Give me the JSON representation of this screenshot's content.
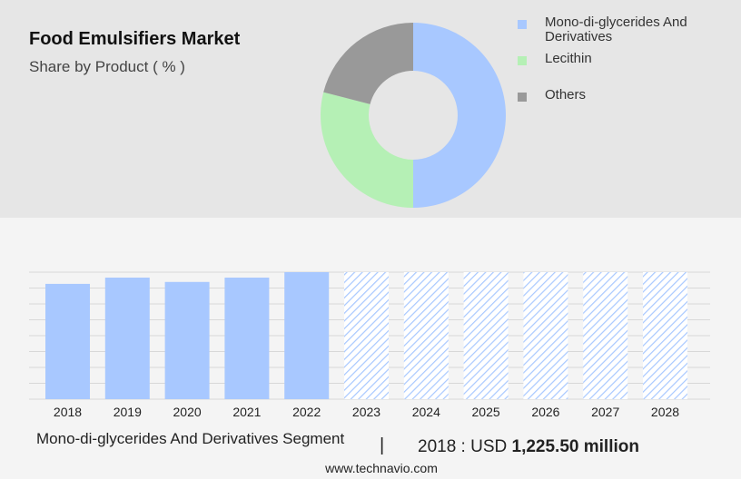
{
  "chart_data": [
    {
      "type": "pie",
      "title": "Food Emulsifiers Market",
      "subtitle": "Share by Product ( % )",
      "labels": [
        "Mono-di-glycerides And Derivatives",
        "Lecithin",
        "Others"
      ],
      "values": [
        50,
        29,
        21
      ],
      "colors": [
        "#a8c8ff",
        "#b5f0b5",
        "#999999"
      ],
      "legend_position": "right"
    },
    {
      "type": "bar",
      "categories": [
        "2018",
        "2019",
        "2020",
        "2021",
        "2022",
        "2023",
        "2024",
        "2025",
        "2026",
        "2027",
        "2028"
      ],
      "series": [
        {
          "values": [
            1225.5,
            1292,
            1246,
            1292,
            1350,
            1350,
            1350,
            1350,
            1350,
            1350,
            1350
          ],
          "forecast": [
            false,
            false,
            false,
            false,
            false,
            true,
            true,
            true,
            true,
            true,
            true
          ]
        }
      ],
      "ylim": [
        0,
        1350
      ],
      "grid": true,
      "bar_color": "#a8c8ff",
      "forecast_style": "hatched"
    }
  ],
  "footer": {
    "segment": "Mono-di-glycerides And Derivatives Segment",
    "divider": "|",
    "year_label": "2018 : USD",
    "value": "1,225.50 million"
  },
  "source": "www.technavio.com"
}
